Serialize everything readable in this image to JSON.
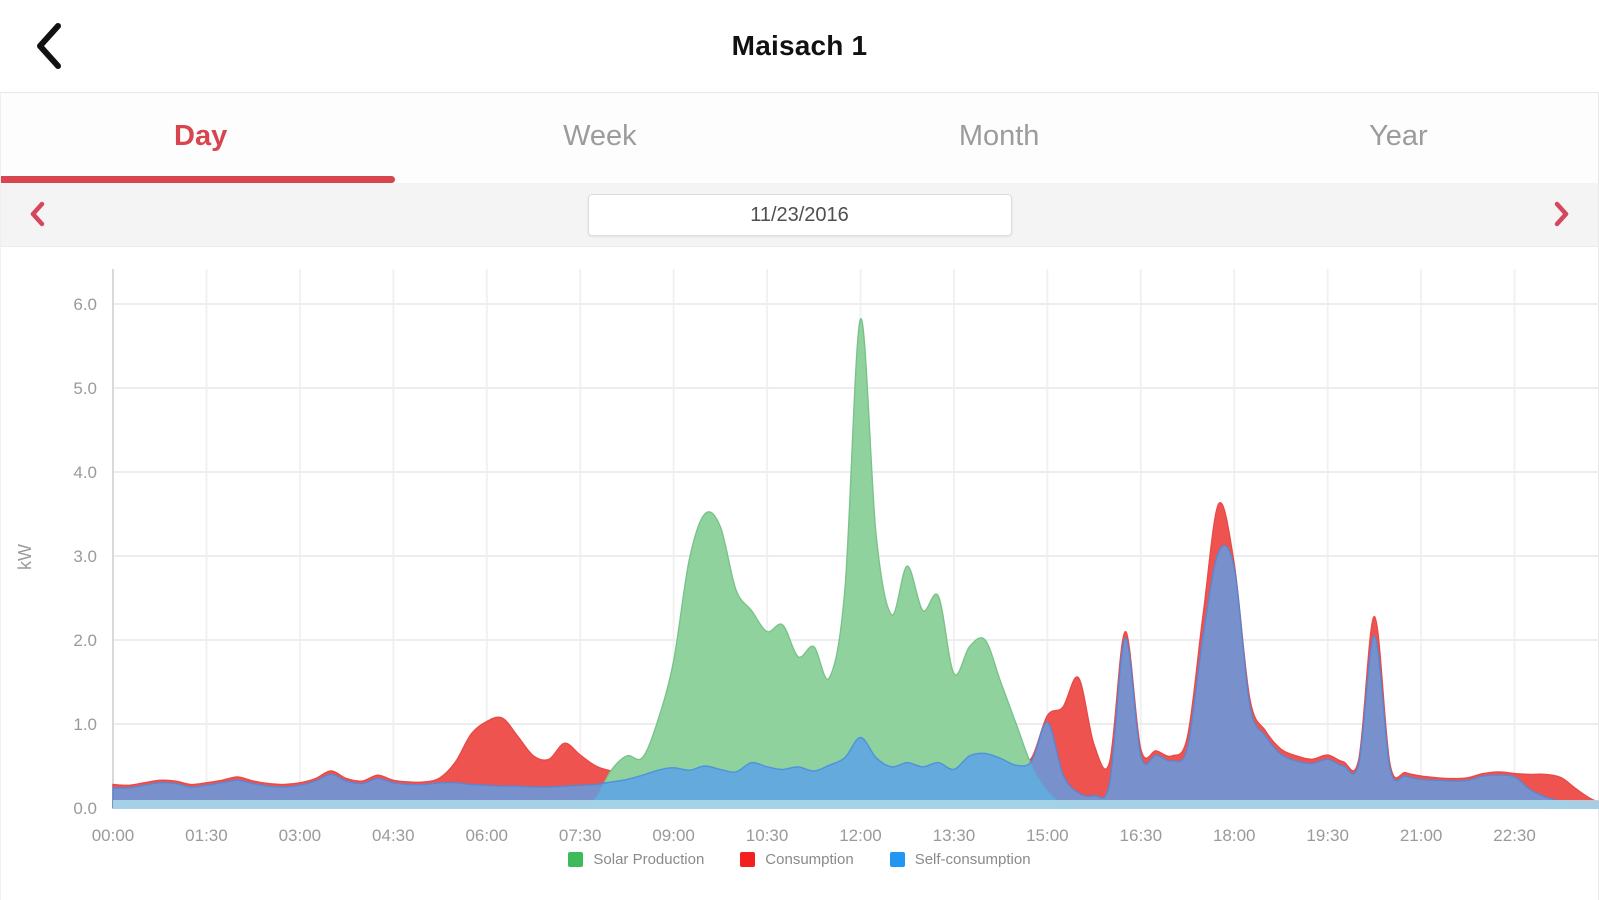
{
  "theme": {
    "accent_red": "#d8454e",
    "arrow_red": "#d5475e",
    "inactive_tab_gray": "#9c9c9c",
    "tick_gray": "#9a9a9a",
    "date_row_bg": "#f4f4f4"
  },
  "header": {
    "title": "Maisach 1",
    "back_icon": "chevron-left"
  },
  "tabs": {
    "items": [
      {
        "label": "Day",
        "active": true
      },
      {
        "label": "Week",
        "active": false
      },
      {
        "label": "Month",
        "active": false
      },
      {
        "label": "Year",
        "active": false
      }
    ]
  },
  "date_nav": {
    "prev_icon": "chevron-left",
    "next_icon": "chevron-right",
    "date": "11/23/2016"
  },
  "chart_data": {
    "type": "area",
    "ylabel": "kW",
    "grid": true,
    "legend_position": "bottom",
    "ylim": [
      0,
      6
    ],
    "y_ticks": [
      0,
      1,
      2,
      3,
      4,
      5,
      6
    ],
    "y_tick_labels": [
      "0.0",
      "1.0",
      "2.0",
      "3.0",
      "4.0",
      "5.0",
      "6.0"
    ],
    "x_unit": "hours",
    "x_start_hour": 0,
    "x_step_hours": 0.25,
    "x_tick_hours": [
      0,
      1.5,
      3,
      4.5,
      6,
      7.5,
      9,
      10.5,
      12,
      13.5,
      15,
      16.5,
      18,
      19.5,
      21,
      22.5
    ],
    "x_tick_labels": [
      "00:00",
      "01:30",
      "03:00",
      "04:30",
      "06:00",
      "07:30",
      "09:00",
      "10:30",
      "12:00",
      "13:30",
      "15:00",
      "16:30",
      "18:00",
      "19:30",
      "21:00",
      "22:30"
    ],
    "baseline_strip_color": "#abd7e9",
    "series": [
      {
        "name": "Consumption",
        "legend_color": "#f32020",
        "fill": "#ef5350",
        "stroke": "#e84a48",
        "values": [
          0.28,
          0.27,
          0.3,
          0.33,
          0.32,
          0.28,
          0.3,
          0.33,
          0.37,
          0.32,
          0.29,
          0.28,
          0.3,
          0.35,
          0.44,
          0.35,
          0.32,
          0.39,
          0.33,
          0.31,
          0.31,
          0.36,
          0.55,
          0.88,
          1.03,
          1.07,
          0.85,
          0.62,
          0.58,
          0.77,
          0.63,
          0.5,
          0.44,
          0.42,
          0.46,
          0.52,
          0.55,
          0.5,
          0.55,
          0.5,
          0.47,
          0.58,
          0.53,
          0.5,
          0.53,
          0.48,
          0.55,
          0.65,
          0.88,
          0.65,
          0.53,
          0.58,
          0.53,
          0.58,
          0.5,
          0.66,
          0.69,
          0.63,
          0.55,
          0.6,
          1.1,
          1.2,
          1.55,
          0.75,
          0.55,
          2.1,
          0.7,
          0.68,
          0.62,
          0.85,
          2.3,
          3.62,
          2.9,
          1.3,
          0.92,
          0.7,
          0.62,
          0.58,
          0.63,
          0.55,
          0.58,
          2.28,
          0.52,
          0.42,
          0.38,
          0.36,
          0.35,
          0.36,
          0.41,
          0.43,
          0.41,
          0.4,
          0.4,
          0.36,
          0.22,
          0.1,
          0.04
        ]
      },
      {
        "name": "Solar Production",
        "legend_color": "#3dba5a",
        "fill": "#90d29e",
        "stroke": "#79c38b",
        "values": [
          0,
          0,
          0,
          0,
          0,
          0,
          0,
          0,
          0,
          0,
          0,
          0,
          0,
          0,
          0,
          0,
          0,
          0,
          0,
          0,
          0,
          0,
          0,
          0,
          0,
          0,
          0,
          0,
          0,
          0,
          0,
          0.12,
          0.45,
          0.62,
          0.6,
          1.05,
          1.75,
          2.95,
          3.5,
          3.35,
          2.6,
          2.35,
          2.1,
          2.18,
          1.8,
          1.92,
          1.55,
          2.6,
          5.82,
          3.25,
          2.3,
          2.88,
          2.35,
          2.52,
          1.6,
          1.92,
          2.0,
          1.5,
          1.0,
          0.5,
          0.2,
          0.05,
          0,
          0,
          0,
          0,
          0,
          0,
          0,
          0,
          0,
          0,
          0,
          0,
          0,
          0,
          0,
          0,
          0,
          0,
          0,
          0,
          0,
          0,
          0,
          0,
          0,
          0,
          0,
          0,
          0,
          0,
          0
        ]
      },
      {
        "name": "Self-consumption",
        "legend_color": "#2196f3",
        "fill": "rgba(90,160,235,0.8)",
        "stroke": "rgba(70,140,225,0.85)",
        "values": [
          0.24,
          0.24,
          0.27,
          0.3,
          0.29,
          0.25,
          0.27,
          0.3,
          0.33,
          0.29,
          0.26,
          0.25,
          0.27,
          0.32,
          0.4,
          0.32,
          0.29,
          0.35,
          0.3,
          0.28,
          0.28,
          0.3,
          0.3,
          0.28,
          0.27,
          0.26,
          0.26,
          0.25,
          0.25,
          0.26,
          0.27,
          0.28,
          0.31,
          0.34,
          0.39,
          0.45,
          0.48,
          0.45,
          0.5,
          0.46,
          0.43,
          0.54,
          0.49,
          0.46,
          0.49,
          0.44,
          0.51,
          0.6,
          0.84,
          0.6,
          0.49,
          0.54,
          0.49,
          0.54,
          0.46,
          0.62,
          0.65,
          0.59,
          0.51,
          0.56,
          1.02,
          0.4,
          0.18,
          0.15,
          0.3,
          2.02,
          0.62,
          0.63,
          0.56,
          0.72,
          2.05,
          3.05,
          2.85,
          1.22,
          0.86,
          0.64,
          0.56,
          0.53,
          0.58,
          0.5,
          0.53,
          2.05,
          0.47,
          0.38,
          0.34,
          0.33,
          0.32,
          0.33,
          0.38,
          0.39,
          0.37,
          0.22,
          0.13,
          0.08,
          0.05,
          0.03,
          0.02
        ]
      }
    ],
    "legend_order": [
      "Solar Production",
      "Consumption",
      "Self-consumption"
    ]
  }
}
